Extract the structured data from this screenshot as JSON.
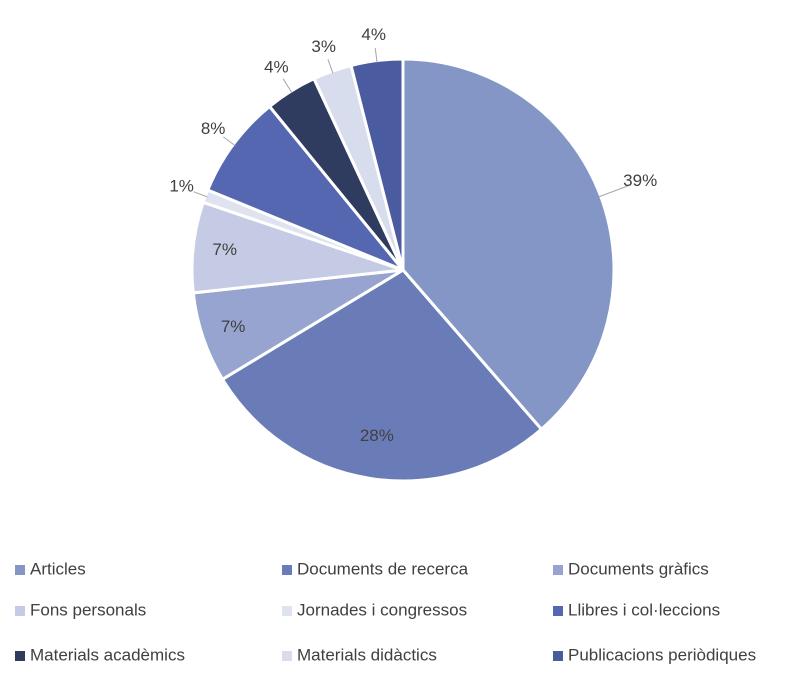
{
  "chart_data": {
    "type": "pie",
    "categories": [
      "Articles",
      "Documents de recerca",
      "Documents gràfics",
      "Fons personals",
      "Jornades i congressos",
      "Llibres i col·leccions",
      "Materials acadèmics",
      "Materials didàctics",
      "Publicacions periòdiques"
    ],
    "values": [
      39,
      28,
      7,
      7,
      1,
      8,
      4,
      3,
      4
    ],
    "value_labels": [
      "39%",
      "28%",
      "7%",
      "7%",
      "1%",
      "8%",
      "4%",
      "3%",
      "4%"
    ],
    "colors": [
      "#8496c6",
      "#6a7cb8",
      "#97a4d0",
      "#c5cbe4",
      "#dfe3f0",
      "#5567b1",
      "#2f3b5f",
      "#d8ddee",
      "#4b5ba0"
    ],
    "legend": "bottom"
  }
}
